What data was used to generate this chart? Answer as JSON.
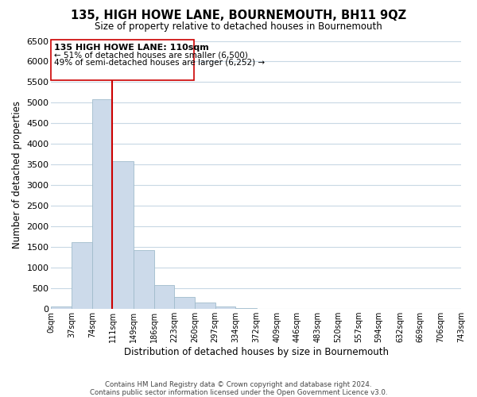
{
  "title": "135, HIGH HOWE LANE, BOURNEMOUTH, BH11 9QZ",
  "subtitle": "Size of property relative to detached houses in Bournemouth",
  "xlabel": "Distribution of detached houses by size in Bournemouth",
  "ylabel": "Number of detached properties",
  "bar_color": "#ccdaea",
  "bar_edge_color": "#a0bccc",
  "vline_color": "#cc0000",
  "vline_x": 111,
  "bin_edges": [
    0,
    37,
    74,
    111,
    149,
    186,
    223,
    260,
    297,
    334,
    372,
    409,
    446,
    483,
    520,
    557,
    594,
    632,
    669,
    706,
    743
  ],
  "bar_heights": [
    60,
    1620,
    5080,
    3580,
    1420,
    580,
    300,
    150,
    60,
    20,
    0,
    0,
    0,
    0,
    0,
    0,
    0,
    0,
    0,
    0
  ],
  "ylim": [
    0,
    6500
  ],
  "yticks": [
    0,
    500,
    1000,
    1500,
    2000,
    2500,
    3000,
    3500,
    4000,
    4500,
    5000,
    5500,
    6000,
    6500
  ],
  "xtick_labels": [
    "0sqm",
    "37sqm",
    "74sqm",
    "111sqm",
    "149sqm",
    "186sqm",
    "223sqm",
    "260sqm",
    "297sqm",
    "334sqm",
    "372sqm",
    "409sqm",
    "446sqm",
    "483sqm",
    "520sqm",
    "557sqm",
    "594sqm",
    "632sqm",
    "669sqm",
    "706sqm",
    "743sqm"
  ],
  "annotation_title": "135 HIGH HOWE LANE: 110sqm",
  "annotation_line1": "← 51% of detached houses are smaller (6,500)",
  "annotation_line2": "49% of semi-detached houses are larger (6,252) →",
  "footer1": "Contains HM Land Registry data © Crown copyright and database right 2024.",
  "footer2": "Contains public sector information licensed under the Open Government Licence v3.0.",
  "background_color": "#ffffff",
  "grid_color": "#c8d8e4"
}
